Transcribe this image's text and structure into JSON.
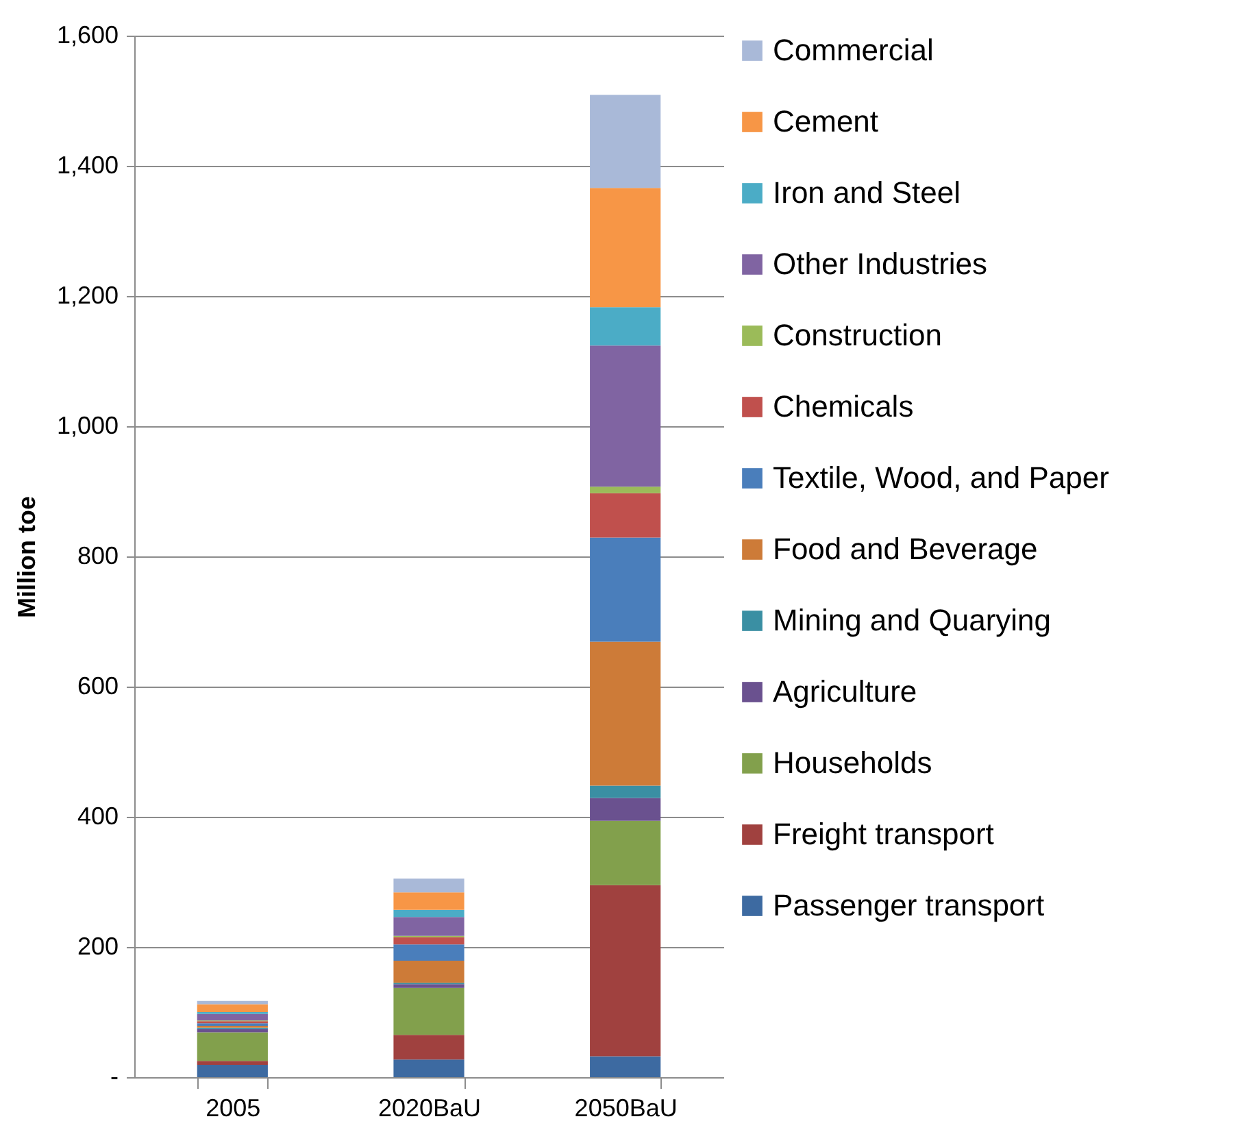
{
  "chart_data": {
    "type": "bar",
    "stacked": true,
    "ylabel": "Million toe",
    "categories": [
      "2005",
      "2020BaU",
      "2050BaU"
    ],
    "ylim": [
      0,
      1600
    ],
    "yticks": [
      {
        "value": 0,
        "label": "-"
      },
      200,
      400,
      600,
      800,
      {
        "value": 1000,
        "label": "1,000"
      },
      {
        "value": 1200,
        "label": "1,200"
      },
      {
        "value": 1400,
        "label": "1,400"
      },
      {
        "value": 1600,
        "label": "1,600"
      }
    ],
    "grid": "y",
    "legend": "right",
    "series": [
      {
        "name": "Passenger transport",
        "color": "#3d6aa1",
        "values": [
          19,
          27,
          32
        ]
      },
      {
        "name": "Freight transport",
        "color": "#a0413f",
        "values": [
          6,
          38,
          263
        ]
      },
      {
        "name": "Households",
        "color": "#82a04c",
        "values": [
          44,
          72,
          99
        ]
      },
      {
        "name": "Agriculture",
        "color": "#6a518f",
        "values": [
          5,
          6,
          35
        ]
      },
      {
        "name": "Mining and Quarying",
        "color": "#3a8fa3",
        "values": [
          2,
          2,
          19
        ]
      },
      {
        "name": "Food and Beverage",
        "color": "#cd7b38",
        "values": [
          3,
          34,
          221
        ]
      },
      {
        "name": "Textile, Wood, and Paper",
        "color": "#4a7ebb",
        "values": [
          4,
          25,
          160
        ]
      },
      {
        "name": "Chemicals",
        "color": "#c0504d",
        "values": [
          3,
          11,
          68
        ]
      },
      {
        "name": "Construction",
        "color": "#9bbb59",
        "values": [
          1,
          2,
          10
        ]
      },
      {
        "name": "Other Industries",
        "color": "#8064a2",
        "values": [
          10,
          29,
          217
        ]
      },
      {
        "name": "Iron and Steel",
        "color": "#4bacc6",
        "values": [
          3,
          11,
          59
        ]
      },
      {
        "name": "Cement",
        "color": "#f79646",
        "values": [
          12,
          27,
          183
        ]
      },
      {
        "name": "Commercial",
        "color": "#a9b9d8",
        "values": [
          5,
          21,
          143
        ]
      }
    ]
  }
}
